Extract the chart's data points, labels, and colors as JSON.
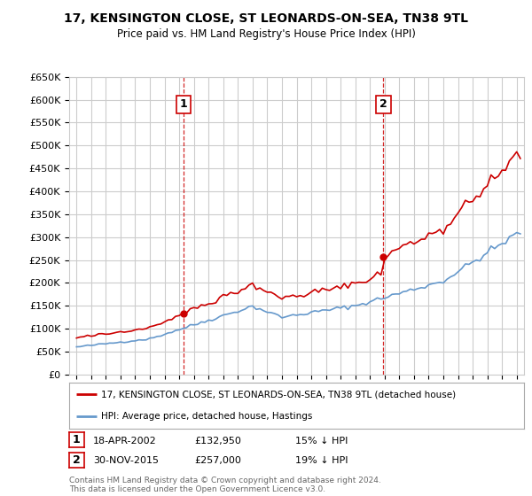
{
  "title": "17, KENSINGTON CLOSE, ST LEONARDS-ON-SEA, TN38 9TL",
  "subtitle": "Price paid vs. HM Land Registry's House Price Index (HPI)",
  "legend_line1": "17, KENSINGTON CLOSE, ST LEONARDS-ON-SEA, TN38 9TL (detached house)",
  "legend_line2": "HPI: Average price, detached house, Hastings",
  "sale1_date": "18-APR-2002",
  "sale1_price": "£132,950",
  "sale1_hpi": "15% ↓ HPI",
  "sale1_year": 2002.3,
  "sale1_value": 132950,
  "sale2_date": "30-NOV-2015",
  "sale2_price": "£257,000",
  "sale2_hpi": "19% ↓ HPI",
  "sale2_year": 2015.92,
  "sale2_value": 257000,
  "footer": "Contains HM Land Registry data © Crown copyright and database right 2024.\nThis data is licensed under the Open Government Licence v3.0.",
  "ylim_min": 0,
  "ylim_max": 650000,
  "xlim_min": 1994.5,
  "xlim_max": 2025.5,
  "red_color": "#cc0000",
  "blue_color": "#6699cc",
  "vline_color": "#cc0000",
  "grid_color": "#cccccc",
  "bg_color": "#ffffff",
  "annotation_box_color": "#cc0000"
}
